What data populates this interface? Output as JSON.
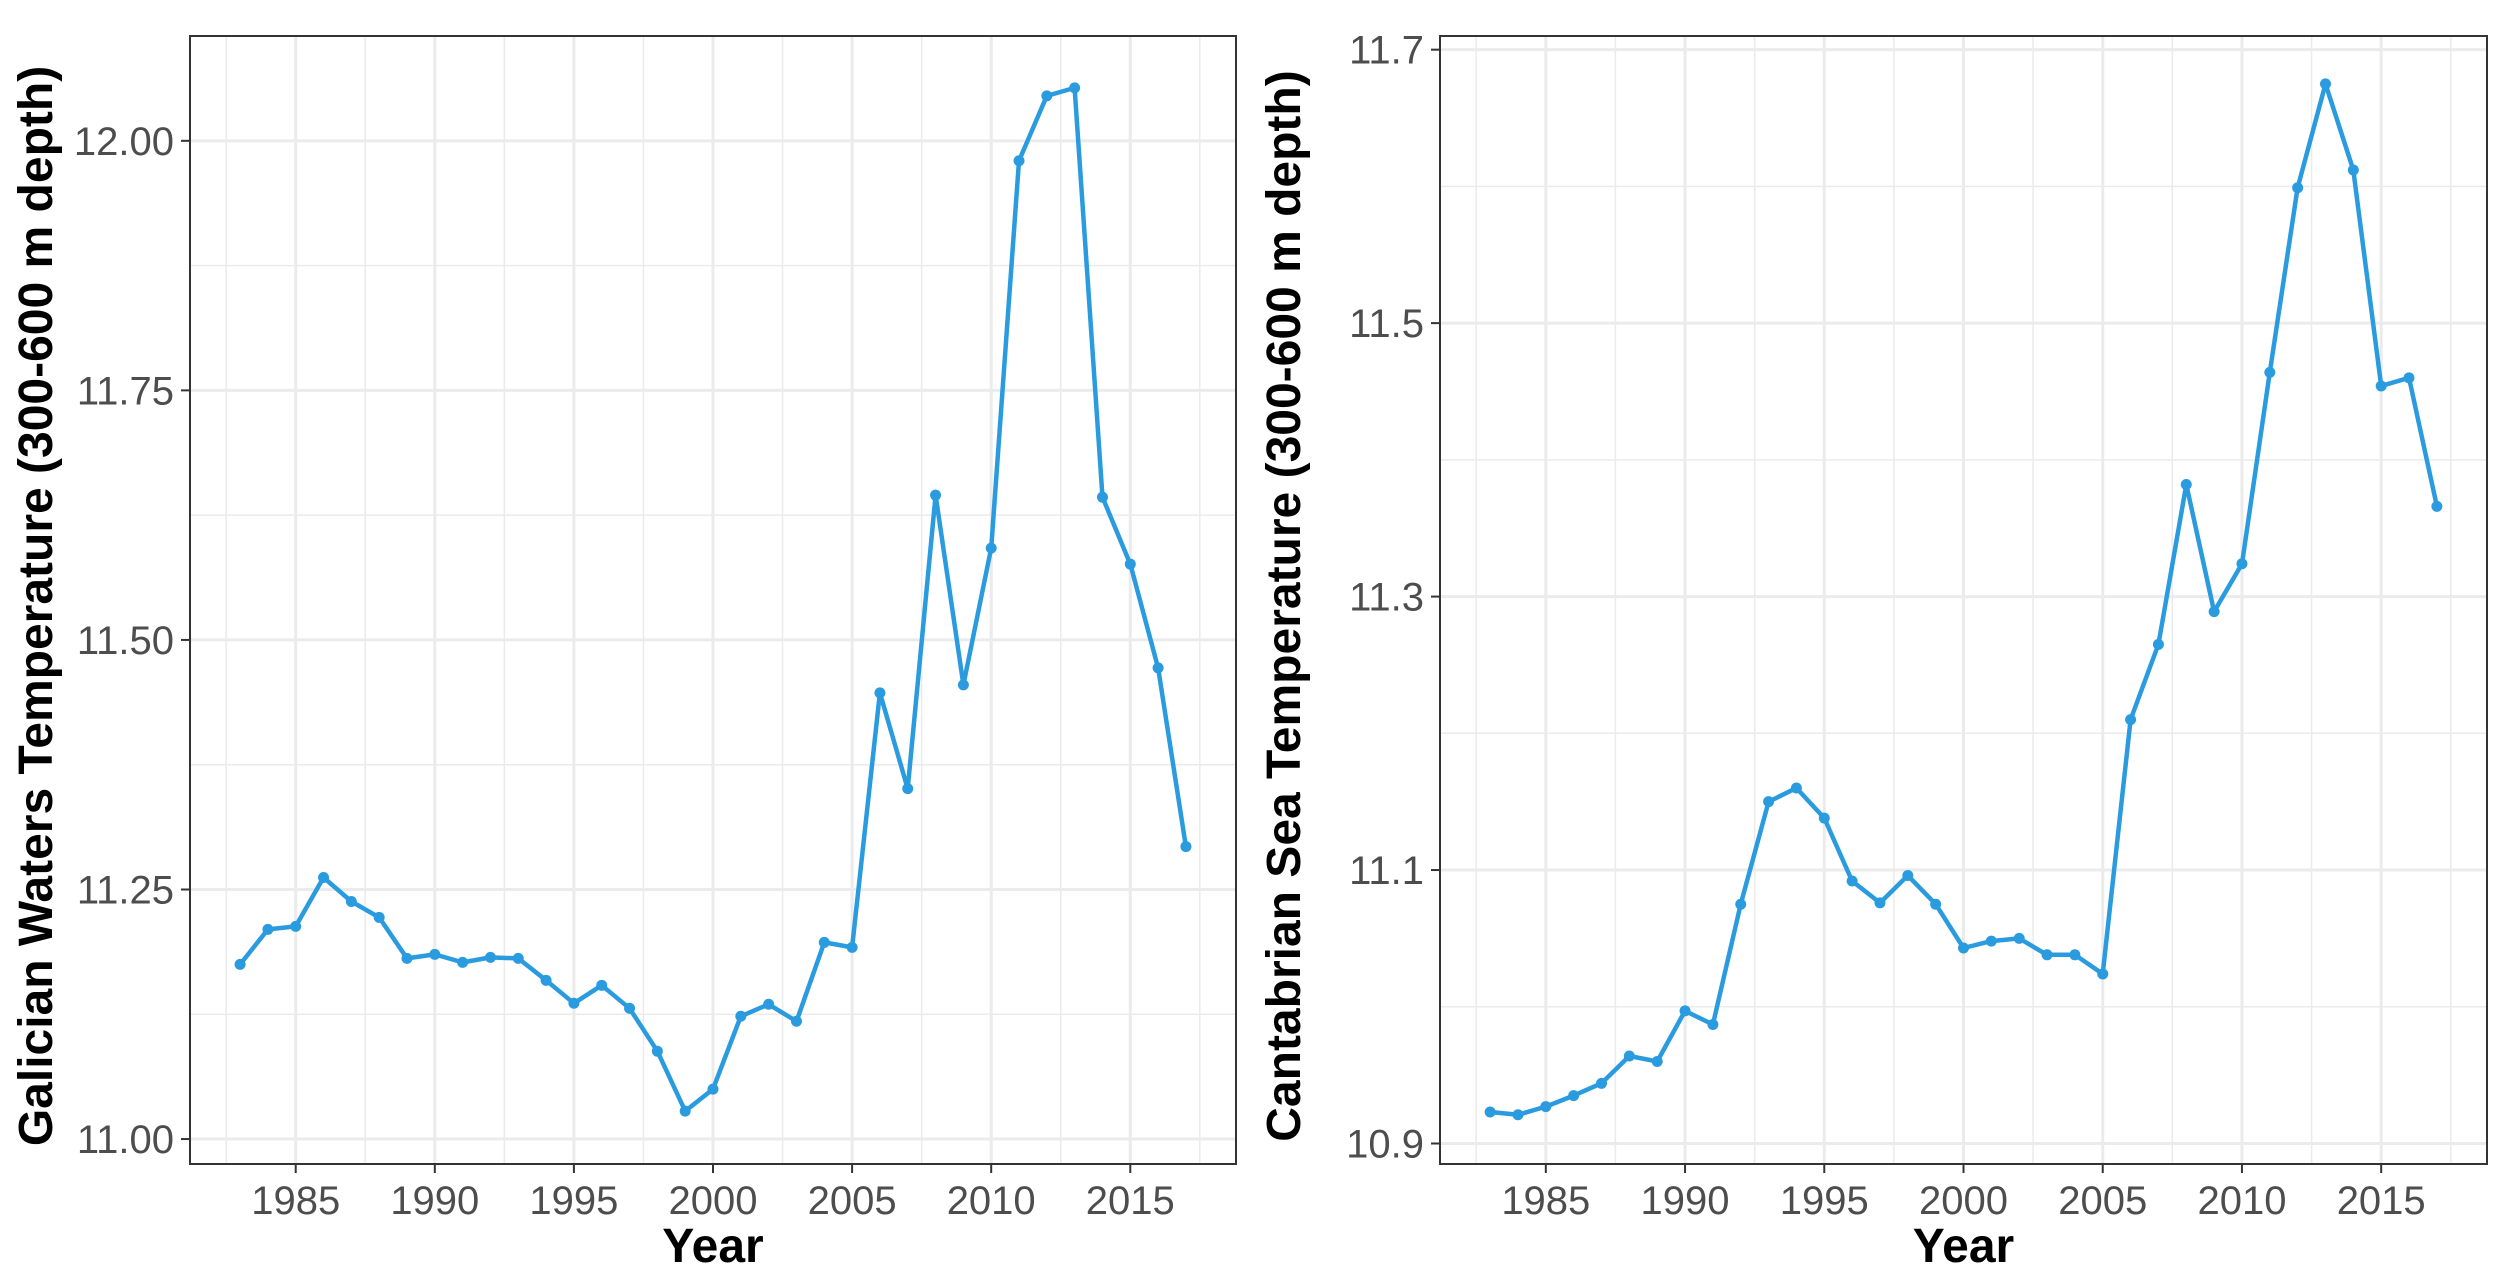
{
  "colors": {
    "series": "#2b9be0",
    "grid": "#ebebeb",
    "panel_border": "#333333",
    "tick_text": "#4d4d4d"
  },
  "chart_data": [
    {
      "type": "line",
      "title": "",
      "xlabel": "Year",
      "ylabel": "Galician Waters Temperature (300-600 m depth)",
      "xlim": [
        1981.2,
        2018.8
      ],
      "ylim": [
        10.975,
        12.105
      ],
      "x_ticks": [
        1985,
        1990,
        1995,
        2000,
        2005,
        2010,
        2015
      ],
      "x_tick_labels": [
        "1985",
        "1990",
        "1995",
        "2000",
        "2005",
        "2010",
        "2015"
      ],
      "y_ticks": [
        11.0,
        11.25,
        11.5,
        11.75,
        12.0
      ],
      "y_tick_labels": [
        "11.00",
        "11.25",
        "11.50",
        "11.75",
        "12.00"
      ],
      "grid": true,
      "series": [
        {
          "x": [
            1983,
            1984,
            1985,
            1986,
            1987,
            1988,
            1989,
            1990,
            1991,
            1992,
            1993,
            1994,
            1995,
            1996,
            1997,
            1998,
            1999,
            2000,
            2001,
            2002,
            2003,
            2004,
            2005,
            2006,
            2007,
            2008,
            2009,
            2010,
            2011,
            2012,
            2013,
            2014,
            2015,
            2016,
            2017
          ],
          "values": [
            11.175,
            11.21,
            11.213,
            11.262,
            11.238,
            11.222,
            11.181,
            11.185,
            11.177,
            11.182,
            11.181,
            11.159,
            11.136,
            11.154,
            11.131,
            11.088,
            11.028,
            11.05,
            11.123,
            11.135,
            11.118,
            11.197,
            11.192,
            11.447,
            11.351,
            11.645,
            11.455,
            11.592,
            11.98,
            12.045,
            12.053,
            11.643,
            11.576,
            11.472,
            11.293
          ]
        }
      ]
    },
    {
      "type": "line",
      "title": "",
      "xlabel": "Year",
      "ylabel": "Cantabrian Sea Temperature (300-600 m depth)",
      "xlim": [
        1981.2,
        2018.8
      ],
      "ylim": [
        10.885,
        11.71
      ],
      "x_ticks": [
        1985,
        1990,
        1995,
        2000,
        2005,
        2010,
        2015
      ],
      "x_tick_labels": [
        "1985",
        "1990",
        "1995",
        "2000",
        "2005",
        "2010",
        "2015"
      ],
      "y_ticks": [
        10.9,
        11.1,
        11.3,
        11.5,
        11.7
      ],
      "y_tick_labels": [
        "10.9",
        "11.1",
        "11.3",
        "11.5",
        "11.7"
      ],
      "grid": true,
      "series": [
        {
          "x": [
            1983,
            1984,
            1985,
            1986,
            1987,
            1988,
            1989,
            1990,
            1991,
            1992,
            1993,
            1994,
            1995,
            1996,
            1997,
            1998,
            1999,
            2000,
            2001,
            2002,
            2003,
            2004,
            2005,
            2006,
            2007,
            2008,
            2009,
            2010,
            2011,
            2012,
            2013,
            2014,
            2015,
            2016,
            2017
          ],
          "values": [
            10.923,
            10.921,
            10.927,
            10.935,
            10.944,
            10.964,
            10.96,
            10.997,
            10.987,
            11.075,
            11.15,
            11.16,
            11.138,
            11.092,
            11.076,
            11.096,
            11.075,
            11.043,
            11.048,
            11.05,
            11.038,
            11.038,
            11.024,
            11.21,
            11.265,
            11.382,
            11.289,
            11.324,
            11.464,
            11.599,
            11.675,
            11.612,
            11.454,
            11.46,
            11.366
          ]
        }
      ]
    }
  ]
}
